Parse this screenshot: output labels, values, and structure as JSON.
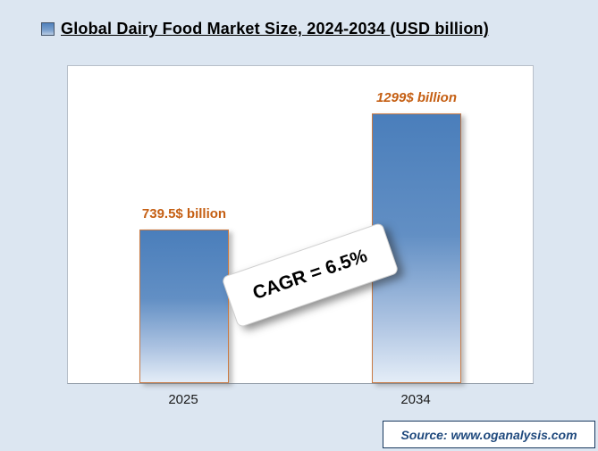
{
  "header": {
    "title": "Global Dairy Food Market Size, 2024-2034 (USD billion)"
  },
  "chart_data": {
    "type": "bar",
    "title": "Global Dairy Food Market Size, 2024-2034 (USD billion)",
    "categories": [
      "2025",
      "2034"
    ],
    "values": [
      739.5,
      1299
    ],
    "value_labels": [
      "739.5$ billion",
      "1299$ billion"
    ],
    "unit": "USD billion",
    "annotation": "CAGR = 6.5%",
    "xlabel": "",
    "ylabel": "",
    "ylim": [
      0,
      1500
    ],
    "grid": false,
    "legend_position": "none"
  },
  "footer": {
    "source": "Source: www.oganalysis.com"
  },
  "colors": {
    "page_background": "#dce6f1",
    "bar_top": "#4a7ebb",
    "bar_bottom": "#e4edf7",
    "bar_border": "#c97a44",
    "value_label": "#c55f13",
    "source_text": "#1f497d",
    "title_text": "#000000"
  }
}
